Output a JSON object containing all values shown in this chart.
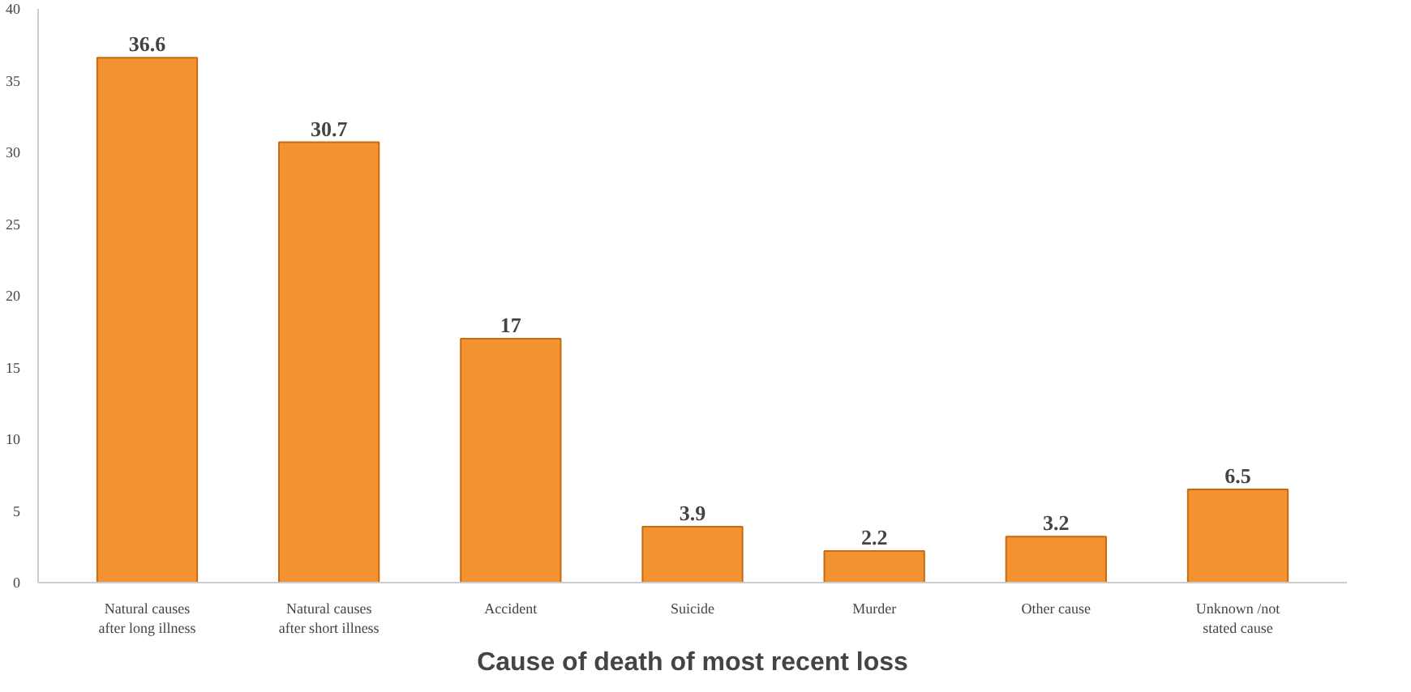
{
  "chart_data": {
    "type": "bar",
    "xlabel": "Cause of death of most recent loss",
    "categories": [
      "Natural causes\nafter long illness",
      "Natural causes\nafter short illness",
      "Accident",
      "Suicide",
      "Murder",
      "Other cause",
      "Unknown /not\nstated cause"
    ],
    "values": [
      36.6,
      30.7,
      17,
      3.9,
      2.2,
      3.2,
      6.5
    ],
    "color": "#f39230",
    "ylim": [
      0,
      40
    ],
    "yticks": [
      0,
      5,
      10,
      15,
      20,
      25,
      30,
      35,
      40
    ],
    "grid": false,
    "data_labels": true
  }
}
